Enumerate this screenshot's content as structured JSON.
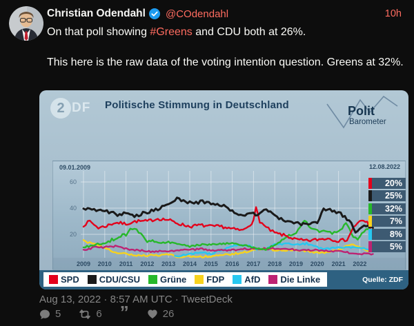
{
  "accent": "#ff6c60",
  "tweet": {
    "author": "Christian Odendahl",
    "handle": "@COdendahl",
    "time": "10h",
    "text1_pre": "On that poll showing ",
    "hashtag": "#Greens",
    "text1_post": " and CDU both at 26%.",
    "text2": "This here is the raw data of the voting intention question. Greens at 32%.",
    "date_line": "Aug 13, 2022 · 8:57 AM UTC · TweetDeck",
    "stats": {
      "replies": "5",
      "retweets": "6",
      "likes": "26"
    }
  },
  "chart_card": {
    "broadcaster_logo": "ZDF",
    "zdf_circle_glyph": "2",
    "zdf_rest": "DF",
    "title": "Politische Stimmung in Deutschland",
    "logo_line1": "Polit",
    "logo_line2": "Barometer",
    "date_start": "09.01.2009",
    "date_end": "12.08.2022",
    "source": "Quelle: ZDF"
  },
  "chart_data": {
    "type": "line",
    "title": "Politische Stimmung in Deutschland",
    "x_range": [
      2009,
      2022.7
    ],
    "ylim": [
      0,
      65
    ],
    "y_ticks": [
      20,
      40,
      60
    ],
    "x_ticks": [
      2009,
      2010,
      2011,
      2012,
      2013,
      2014,
      2015,
      2016,
      2017,
      2018,
      2019,
      2020,
      2021,
      2022
    ],
    "grid": true,
    "legend_position": "bottom",
    "series": [
      {
        "name": "SPD",
        "color": "#e3001b",
        "final_label": "20%",
        "points": [
          [
            2009,
            27
          ],
          [
            2009.3,
            30
          ],
          [
            2009.7,
            25
          ],
          [
            2010,
            26
          ],
          [
            2010.5,
            29
          ],
          [
            2011,
            28
          ],
          [
            2011.5,
            30
          ],
          [
            2012,
            30
          ],
          [
            2012.5,
            32
          ],
          [
            2013,
            31
          ],
          [
            2013.5,
            28
          ],
          [
            2014,
            26
          ],
          [
            2014.5,
            27
          ],
          [
            2015,
            26
          ],
          [
            2015.5,
            26
          ],
          [
            2016,
            24
          ],
          [
            2016.5,
            23
          ],
          [
            2017,
            30
          ],
          [
            2017.12,
            40
          ],
          [
            2017.3,
            30
          ],
          [
            2017.6,
            25
          ],
          [
            2018,
            21
          ],
          [
            2018.5,
            19
          ],
          [
            2019,
            16
          ],
          [
            2019.5,
            15
          ],
          [
            2020,
            16
          ],
          [
            2020.5,
            17
          ],
          [
            2021,
            15
          ],
          [
            2021.4,
            16
          ],
          [
            2021.7,
            25
          ],
          [
            2021.9,
            29
          ],
          [
            2022.1,
            30
          ],
          [
            2022.35,
            29
          ],
          [
            2022.62,
            20
          ]
        ]
      },
      {
        "name": "CDU/CSU",
        "color": "#1a1a1a",
        "final_label": "25%",
        "points": [
          [
            2009,
            40
          ],
          [
            2009.4,
            38
          ],
          [
            2009.8,
            39
          ],
          [
            2010.2,
            37
          ],
          [
            2010.6,
            35
          ],
          [
            2011,
            36
          ],
          [
            2011.4,
            34
          ],
          [
            2011.8,
            36
          ],
          [
            2012.2,
            38
          ],
          [
            2012.6,
            40
          ],
          [
            2013,
            42
          ],
          [
            2013.4,
            47
          ],
          [
            2013.8,
            45
          ],
          [
            2014.2,
            44
          ],
          [
            2014.6,
            45
          ],
          [
            2015,
            44
          ],
          [
            2015.4,
            43
          ],
          [
            2015.8,
            40
          ],
          [
            2016.2,
            36
          ],
          [
            2016.6,
            34
          ],
          [
            2017,
            37
          ],
          [
            2017.2,
            34
          ],
          [
            2017.5,
            39
          ],
          [
            2017.8,
            37
          ],
          [
            2018.2,
            32
          ],
          [
            2018.6,
            30
          ],
          [
            2019,
            29
          ],
          [
            2019.5,
            27
          ],
          [
            2020,
            29
          ],
          [
            2020.3,
            39
          ],
          [
            2020.7,
            38
          ],
          [
            2021,
            37
          ],
          [
            2021.3,
            33
          ],
          [
            2021.6,
            28
          ],
          [
            2021.8,
            21
          ],
          [
            2022,
            24
          ],
          [
            2022.3,
            27
          ],
          [
            2022.62,
            25
          ]
        ]
      },
      {
        "name": "Grüne",
        "color": "#27b82a",
        "final_label": "32%",
        "points": [
          [
            2009,
            10
          ],
          [
            2009.5,
            12
          ],
          [
            2010,
            13
          ],
          [
            2010.5,
            17
          ],
          [
            2011,
            20
          ],
          [
            2011.3,
            25
          ],
          [
            2011.6,
            22
          ],
          [
            2012,
            15
          ],
          [
            2012.5,
            14
          ],
          [
            2013,
            14
          ],
          [
            2013.5,
            12
          ],
          [
            2014,
            11
          ],
          [
            2014.5,
            12
          ],
          [
            2015,
            12
          ],
          [
            2015.5,
            13
          ],
          [
            2016,
            13
          ],
          [
            2016.5,
            12
          ],
          [
            2017,
            10
          ],
          [
            2017.5,
            8
          ],
          [
            2018,
            12
          ],
          [
            2018.5,
            17
          ],
          [
            2019,
            22
          ],
          [
            2019.4,
            30
          ],
          [
            2019.8,
            24
          ],
          [
            2020.2,
            22
          ],
          [
            2020.6,
            21
          ],
          [
            2021,
            22
          ],
          [
            2021.35,
            28
          ],
          [
            2021.7,
            18
          ],
          [
            2021.9,
            17
          ],
          [
            2022.1,
            21
          ],
          [
            2022.4,
            24
          ],
          [
            2022.62,
            32
          ]
        ]
      },
      {
        "name": "FDP",
        "color": "#f7d21e",
        "final_label": "7%",
        "points": [
          [
            2009,
            15
          ],
          [
            2009.4,
            13
          ],
          [
            2009.8,
            11
          ],
          [
            2010.2,
            8
          ],
          [
            2010.6,
            6
          ],
          [
            2011,
            5
          ],
          [
            2011.5,
            4
          ],
          [
            2012,
            4
          ],
          [
            2012.5,
            4
          ],
          [
            2013,
            5
          ],
          [
            2013.4,
            3
          ],
          [
            2014,
            3
          ],
          [
            2014.5,
            3
          ],
          [
            2015,
            3
          ],
          [
            2015.5,
            4
          ],
          [
            2016,
            5
          ],
          [
            2016.5,
            6
          ],
          [
            2017,
            8
          ],
          [
            2017.5,
            9
          ],
          [
            2018,
            8
          ],
          [
            2018.5,
            8
          ],
          [
            2019,
            8
          ],
          [
            2019.5,
            7
          ],
          [
            2020,
            6
          ],
          [
            2020.5,
            6
          ],
          [
            2021,
            8
          ],
          [
            2021.4,
            11
          ],
          [
            2021.7,
            12
          ],
          [
            2022,
            10
          ],
          [
            2022.3,
            8
          ],
          [
            2022.62,
            7
          ]
        ]
      },
      {
        "name": "AfD",
        "color": "#27c8f0",
        "final_label": "8%",
        "points": [
          [
            2013.3,
            3
          ],
          [
            2013.7,
            4
          ],
          [
            2014,
            5
          ],
          [
            2014.5,
            6
          ],
          [
            2015,
            5
          ],
          [
            2015.5,
            8
          ],
          [
            2016,
            11
          ],
          [
            2016.4,
            12
          ],
          [
            2016.8,
            11
          ],
          [
            2017.2,
            8
          ],
          [
            2017.6,
            9
          ],
          [
            2018,
            12
          ],
          [
            2018.5,
            13
          ],
          [
            2019,
            12
          ],
          [
            2019.5,
            13
          ],
          [
            2020,
            10
          ],
          [
            2020.5,
            9
          ],
          [
            2021,
            10
          ],
          [
            2021.5,
            10
          ],
          [
            2022,
            9
          ],
          [
            2022.3,
            9
          ],
          [
            2022.62,
            8
          ]
        ]
      },
      {
        "name": "Die Linke",
        "color": "#bd2373",
        "final_label": "5%",
        "points": [
          [
            2009,
            8
          ],
          [
            2009.5,
            10
          ],
          [
            2010,
            10
          ],
          [
            2010.5,
            11
          ],
          [
            2011,
            9
          ],
          [
            2011.5,
            8
          ],
          [
            2012,
            7
          ],
          [
            2012.5,
            7
          ],
          [
            2013,
            7
          ],
          [
            2013.5,
            8
          ],
          [
            2014,
            8
          ],
          [
            2014.5,
            9
          ],
          [
            2015,
            8
          ],
          [
            2015.5,
            8
          ],
          [
            2016,
            8
          ],
          [
            2016.5,
            9
          ],
          [
            2017,
            9
          ],
          [
            2017.5,
            9
          ],
          [
            2018,
            9
          ],
          [
            2018.5,
            9
          ],
          [
            2019,
            8
          ],
          [
            2019.5,
            8
          ],
          [
            2020,
            8
          ],
          [
            2020.5,
            7
          ],
          [
            2021,
            7
          ],
          [
            2021.5,
            6
          ],
          [
            2022,
            5
          ],
          [
            2022.3,
            5
          ],
          [
            2022.62,
            5
          ]
        ]
      }
    ]
  }
}
